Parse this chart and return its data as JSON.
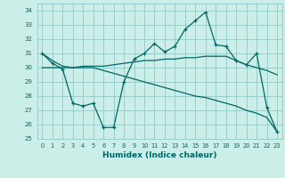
{
  "xlabel": "Humidex (Indice chaleur)",
  "background_color": "#cceee8",
  "grid_color": "#99cccc",
  "line_color": "#006666",
  "ylim": [
    25,
    34.5
  ],
  "xlim": [
    -0.5,
    23.5
  ],
  "yticks": [
    25,
    26,
    27,
    28,
    29,
    30,
    31,
    32,
    33,
    34
  ],
  "xticks": [
    0,
    1,
    2,
    3,
    4,
    5,
    6,
    7,
    8,
    9,
    10,
    11,
    12,
    13,
    14,
    15,
    16,
    17,
    18,
    19,
    20,
    21,
    22,
    23
  ],
  "line1_x": [
    0,
    1,
    2,
    3,
    4,
    5,
    6,
    7,
    8,
    9,
    10,
    11,
    12,
    13,
    14,
    15,
    16,
    17,
    18,
    19,
    20,
    21,
    22,
    23
  ],
  "line1_y": [
    31.0,
    30.3,
    29.9,
    27.5,
    27.3,
    27.5,
    25.8,
    25.8,
    29.0,
    30.6,
    31.0,
    31.7,
    31.1,
    31.5,
    32.7,
    33.3,
    33.9,
    31.6,
    31.5,
    30.5,
    30.2,
    31.0,
    27.2,
    25.5
  ],
  "line2_x": [
    0,
    1,
    2,
    3,
    4,
    5,
    6,
    7,
    8,
    9,
    10,
    11,
    12,
    13,
    14,
    15,
    16,
    17,
    18,
    19,
    20,
    21,
    22,
    23
  ],
  "line2_y": [
    30.0,
    30.0,
    30.0,
    30.0,
    30.1,
    30.1,
    30.1,
    30.2,
    30.3,
    30.4,
    30.5,
    30.5,
    30.6,
    30.6,
    30.7,
    30.7,
    30.8,
    30.8,
    30.8,
    30.5,
    30.2,
    30.0,
    29.8,
    29.5
  ],
  "line3_x": [
    0,
    1,
    2,
    3,
    4,
    5,
    6,
    7,
    8,
    9,
    10,
    11,
    12,
    13,
    14,
    15,
    16,
    17,
    18,
    19,
    20,
    21,
    22,
    23
  ],
  "line3_y": [
    31.0,
    30.5,
    30.1,
    30.0,
    30.0,
    30.0,
    29.8,
    29.6,
    29.4,
    29.2,
    29.0,
    28.8,
    28.6,
    28.4,
    28.2,
    28.0,
    27.9,
    27.7,
    27.5,
    27.3,
    27.0,
    26.8,
    26.5,
    25.5
  ]
}
